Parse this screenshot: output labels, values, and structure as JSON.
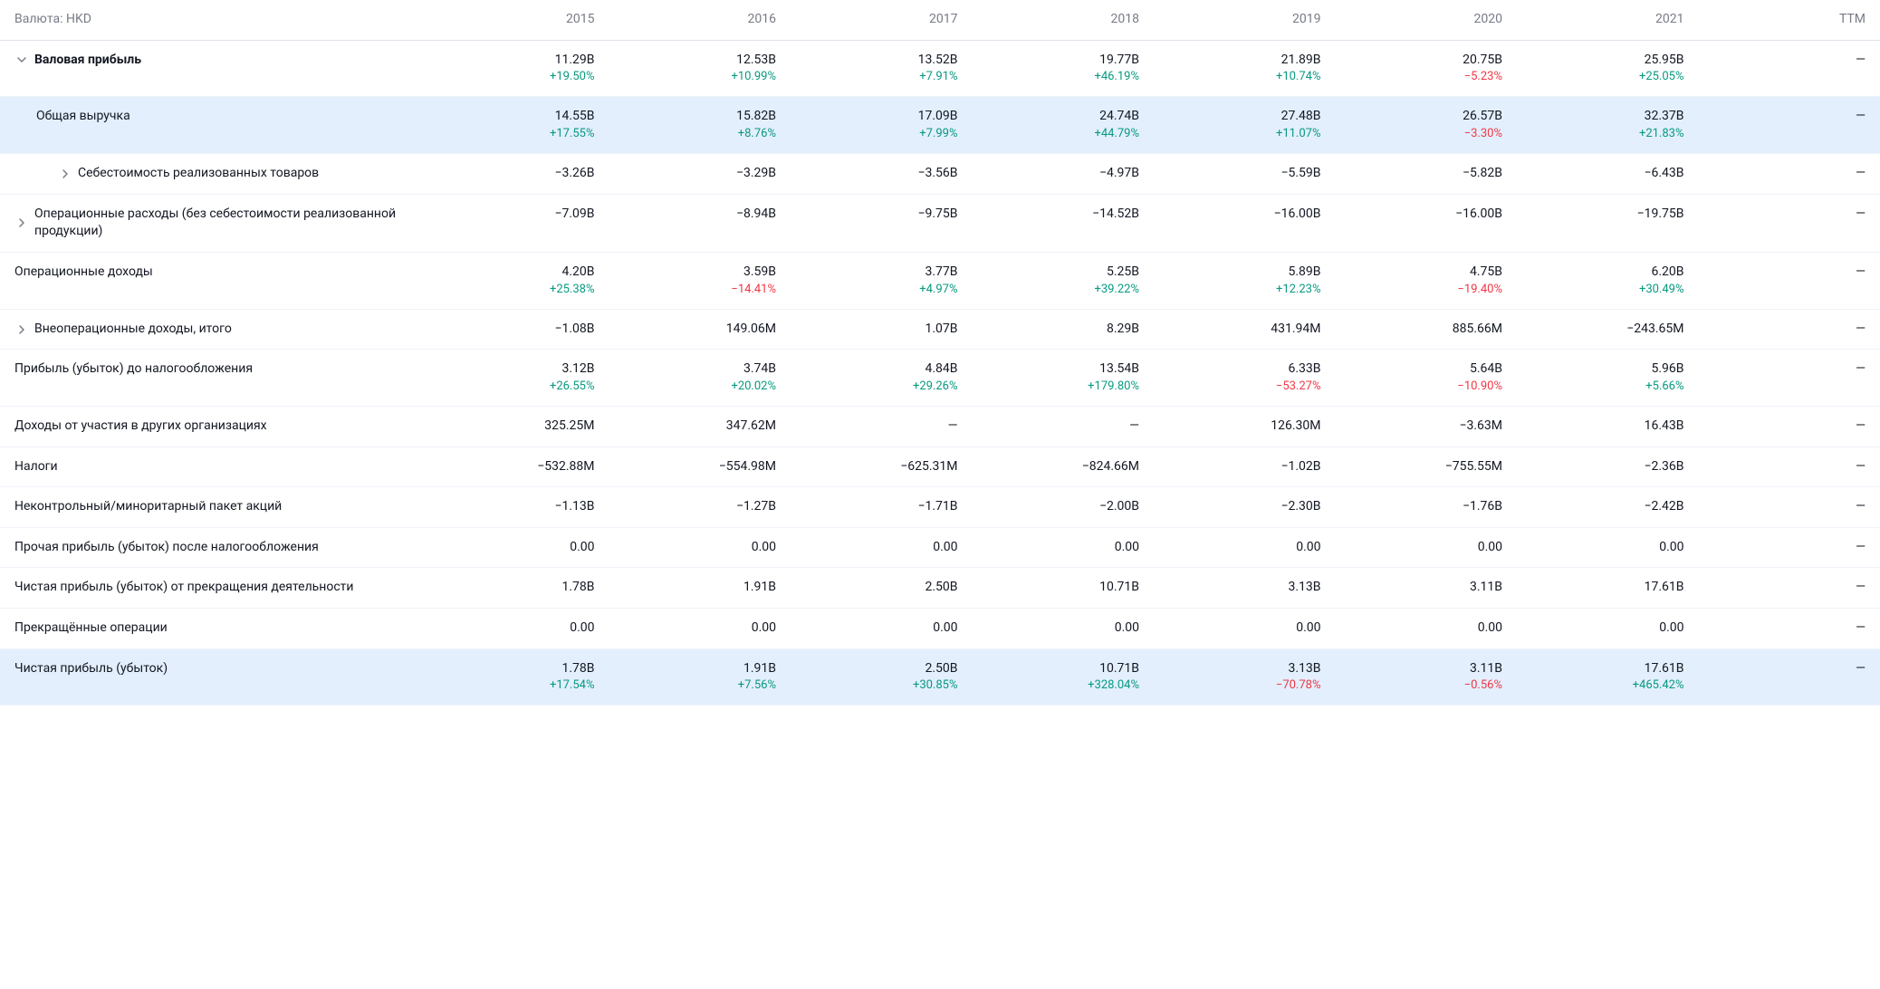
{
  "currency_label": "Валюта: HKD",
  "columns": [
    "2015",
    "2016",
    "2017",
    "2018",
    "2019",
    "2020",
    "2021",
    "TTM"
  ],
  "colors": {
    "positive": "#089981",
    "negative": "#f23645",
    "text": "#131722",
    "muted": "#787b86",
    "highlight_bg": "#e3effd",
    "border": "#f0f3fa"
  },
  "rows": [
    {
      "label": "Валовая прибыль",
      "bold": true,
      "indent": 0,
      "expandable": true,
      "expanded": true,
      "highlighted": false,
      "cells": [
        {
          "value": "11.29B",
          "change": "+19.50%",
          "sign": "pos"
        },
        {
          "value": "12.53B",
          "change": "+10.99%",
          "sign": "pos"
        },
        {
          "value": "13.52B",
          "change": "+7.91%",
          "sign": "pos"
        },
        {
          "value": "19.77B",
          "change": "+46.19%",
          "sign": "pos"
        },
        {
          "value": "21.89B",
          "change": "+10.74%",
          "sign": "pos"
        },
        {
          "value": "20.75B",
          "change": "−5.23%",
          "sign": "neg"
        },
        {
          "value": "25.95B",
          "change": "+25.05%",
          "sign": "pos"
        },
        {
          "value": "—"
        }
      ]
    },
    {
      "label": "Общая выручка",
      "bold": false,
      "indent": 1,
      "expandable": false,
      "highlighted": true,
      "cells": [
        {
          "value": "14.55B",
          "change": "+17.55%",
          "sign": "pos"
        },
        {
          "value": "15.82B",
          "change": "+8.76%",
          "sign": "pos"
        },
        {
          "value": "17.09B",
          "change": "+7.99%",
          "sign": "pos"
        },
        {
          "value": "24.74B",
          "change": "+44.79%",
          "sign": "pos"
        },
        {
          "value": "27.48B",
          "change": "+11.07%",
          "sign": "pos"
        },
        {
          "value": "26.57B",
          "change": "−3.30%",
          "sign": "neg"
        },
        {
          "value": "32.37B",
          "change": "+21.83%",
          "sign": "pos"
        },
        {
          "value": "—"
        }
      ]
    },
    {
      "label": "Себестоимость реализованных товаров",
      "bold": false,
      "indent": 2,
      "expandable": true,
      "expanded": false,
      "highlighted": false,
      "cells": [
        {
          "value": "−3.26B"
        },
        {
          "value": "−3.29B"
        },
        {
          "value": "−3.56B"
        },
        {
          "value": "−4.97B"
        },
        {
          "value": "−5.59B"
        },
        {
          "value": "−5.82B"
        },
        {
          "value": "−6.43B"
        },
        {
          "value": "—"
        }
      ]
    },
    {
      "label": "Операционные расходы (без себестоимости реализованной продукции)",
      "bold": false,
      "indent": 0,
      "expandable": true,
      "expanded": false,
      "highlighted": false,
      "cells": [
        {
          "value": "−7.09B"
        },
        {
          "value": "−8.94B"
        },
        {
          "value": "−9.75B"
        },
        {
          "value": "−14.52B"
        },
        {
          "value": "−16.00B"
        },
        {
          "value": "−16.00B"
        },
        {
          "value": "−19.75B"
        },
        {
          "value": "—"
        }
      ]
    },
    {
      "label": "Операционные доходы",
      "bold": false,
      "indent": 0,
      "expandable": false,
      "highlighted": false,
      "cells": [
        {
          "value": "4.20B",
          "change": "+25.38%",
          "sign": "pos"
        },
        {
          "value": "3.59B",
          "change": "−14.41%",
          "sign": "neg"
        },
        {
          "value": "3.77B",
          "change": "+4.97%",
          "sign": "pos"
        },
        {
          "value": "5.25B",
          "change": "+39.22%",
          "sign": "pos"
        },
        {
          "value": "5.89B",
          "change": "+12.23%",
          "sign": "pos"
        },
        {
          "value": "4.75B",
          "change": "−19.40%",
          "sign": "neg"
        },
        {
          "value": "6.20B",
          "change": "+30.49%",
          "sign": "pos"
        },
        {
          "value": "—"
        }
      ]
    },
    {
      "label": "Внеоперационные доходы, итого",
      "bold": false,
      "indent": 0,
      "expandable": true,
      "expanded": false,
      "highlighted": false,
      "cells": [
        {
          "value": "−1.08B"
        },
        {
          "value": "149.06M"
        },
        {
          "value": "1.07B"
        },
        {
          "value": "8.29B"
        },
        {
          "value": "431.94M"
        },
        {
          "value": "885.66M"
        },
        {
          "value": "−243.65M"
        },
        {
          "value": "—"
        }
      ]
    },
    {
      "label": "Прибыль (убыток) до налогообложения",
      "bold": false,
      "indent": 0,
      "expandable": false,
      "highlighted": false,
      "cells": [
        {
          "value": "3.12B",
          "change": "+26.55%",
          "sign": "pos"
        },
        {
          "value": "3.74B",
          "change": "+20.02%",
          "sign": "pos"
        },
        {
          "value": "4.84B",
          "change": "+29.26%",
          "sign": "pos"
        },
        {
          "value": "13.54B",
          "change": "+179.80%",
          "sign": "pos"
        },
        {
          "value": "6.33B",
          "change": "−53.27%",
          "sign": "neg"
        },
        {
          "value": "5.64B",
          "change": "−10.90%",
          "sign": "neg"
        },
        {
          "value": "5.96B",
          "change": "+5.66%",
          "sign": "pos"
        },
        {
          "value": "—"
        }
      ]
    },
    {
      "label": "Доходы от участия в других организациях",
      "bold": false,
      "indent": 0,
      "expandable": false,
      "highlighted": false,
      "cells": [
        {
          "value": "325.25M"
        },
        {
          "value": "347.62M"
        },
        {
          "value": "—"
        },
        {
          "value": "—"
        },
        {
          "value": "126.30M"
        },
        {
          "value": "−3.63M"
        },
        {
          "value": "16.43B"
        },
        {
          "value": "—"
        }
      ]
    },
    {
      "label": "Налоги",
      "bold": false,
      "indent": 0,
      "expandable": false,
      "highlighted": false,
      "cells": [
        {
          "value": "−532.88M"
        },
        {
          "value": "−554.98M"
        },
        {
          "value": "−625.31M"
        },
        {
          "value": "−824.66M"
        },
        {
          "value": "−1.02B"
        },
        {
          "value": "−755.55M"
        },
        {
          "value": "−2.36B"
        },
        {
          "value": "—"
        }
      ]
    },
    {
      "label": "Неконтрольный/миноритарный пакет акций",
      "bold": false,
      "indent": 0,
      "expandable": false,
      "highlighted": false,
      "cells": [
        {
          "value": "−1.13B"
        },
        {
          "value": "−1.27B"
        },
        {
          "value": "−1.71B"
        },
        {
          "value": "−2.00B"
        },
        {
          "value": "−2.30B"
        },
        {
          "value": "−1.76B"
        },
        {
          "value": "−2.42B"
        },
        {
          "value": "—"
        }
      ]
    },
    {
      "label": "Прочая прибыль (убыток) после налогообложения",
      "bold": false,
      "indent": 0,
      "expandable": false,
      "highlighted": false,
      "cells": [
        {
          "value": "0.00"
        },
        {
          "value": "0.00"
        },
        {
          "value": "0.00"
        },
        {
          "value": "0.00"
        },
        {
          "value": "0.00"
        },
        {
          "value": "0.00"
        },
        {
          "value": "0.00"
        },
        {
          "value": "—"
        }
      ]
    },
    {
      "label": "Чистая прибыль (убыток) от прекращения деятельности",
      "bold": false,
      "indent": 0,
      "expandable": false,
      "highlighted": false,
      "cells": [
        {
          "value": "1.78B"
        },
        {
          "value": "1.91B"
        },
        {
          "value": "2.50B"
        },
        {
          "value": "10.71B"
        },
        {
          "value": "3.13B"
        },
        {
          "value": "3.11B"
        },
        {
          "value": "17.61B"
        },
        {
          "value": "—"
        }
      ]
    },
    {
      "label": "Прекращённые операции",
      "bold": false,
      "indent": 0,
      "expandable": false,
      "highlighted": false,
      "cells": [
        {
          "value": "0.00"
        },
        {
          "value": "0.00"
        },
        {
          "value": "0.00"
        },
        {
          "value": "0.00"
        },
        {
          "value": "0.00"
        },
        {
          "value": "0.00"
        },
        {
          "value": "0.00"
        },
        {
          "value": "—"
        }
      ]
    },
    {
      "label": "Чистая прибыль (убыток)",
      "bold": false,
      "indent": 0,
      "expandable": false,
      "highlighted": true,
      "cells": [
        {
          "value": "1.78B",
          "change": "+17.54%",
          "sign": "pos"
        },
        {
          "value": "1.91B",
          "change": "+7.56%",
          "sign": "pos"
        },
        {
          "value": "2.50B",
          "change": "+30.85%",
          "sign": "pos"
        },
        {
          "value": "10.71B",
          "change": "+328.04%",
          "sign": "pos"
        },
        {
          "value": "3.13B",
          "change": "−70.78%",
          "sign": "neg"
        },
        {
          "value": "3.11B",
          "change": "−0.56%",
          "sign": "neg"
        },
        {
          "value": "17.61B",
          "change": "+465.42%",
          "sign": "pos"
        },
        {
          "value": "—"
        }
      ]
    }
  ]
}
